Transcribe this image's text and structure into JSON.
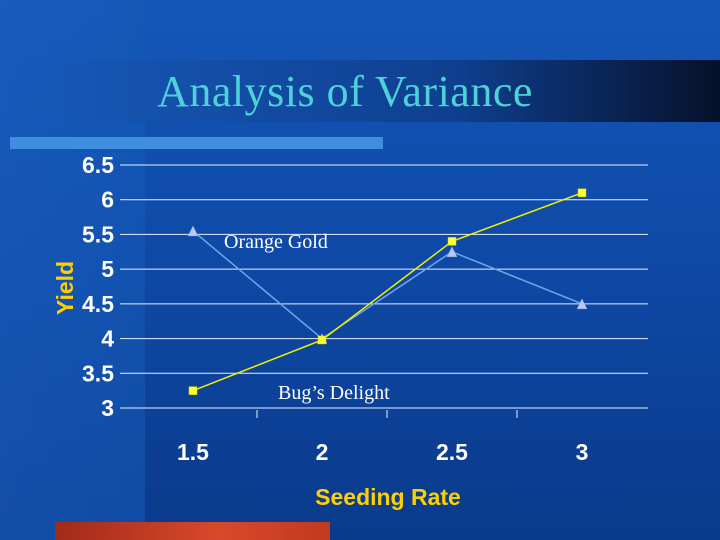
{
  "slide": {
    "title": "Analysis of Variance"
  },
  "chart_data": {
    "type": "line",
    "x": [
      1.5,
      2,
      2.5,
      3
    ],
    "x_tick_labels": [
      "1.5",
      "2",
      "2.5",
      "3"
    ],
    "y_tick_labels": [
      "3",
      "3.5",
      "4",
      "4.5",
      "5",
      "5.5",
      "6",
      "6.5"
    ],
    "xlabel": "Seeding Rate",
    "ylabel": "Yield",
    "ylim": [
      3,
      6.5
    ],
    "grid": "horizontal",
    "legend": "none",
    "series": [
      {
        "name": "Orange Gold",
        "values": [
          5.55,
          4.0,
          5.25,
          4.5
        ],
        "marker": "triangle",
        "color": "#6fa8e8",
        "marker_color": "#b8c8f0"
      },
      {
        "name": "Bug’s Delight",
        "values": [
          3.25,
          3.98,
          5.4,
          6.1
        ],
        "marker": "square",
        "color": "#f0f000",
        "marker_color": "#ffff33"
      }
    ]
  }
}
